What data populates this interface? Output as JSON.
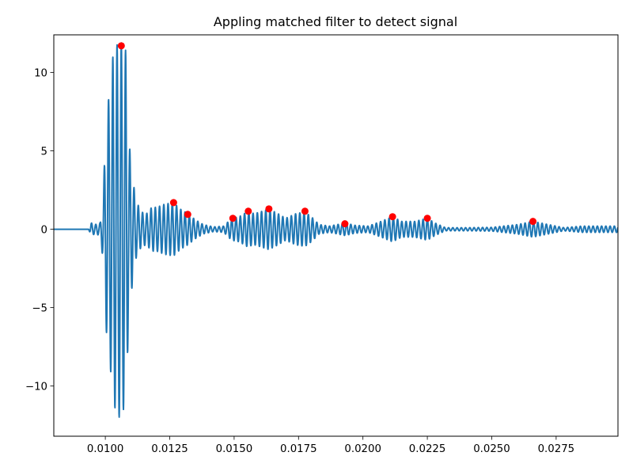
{
  "chart_data": {
    "type": "line",
    "title": "Appling matched filter to detect signal",
    "xlabel": "",
    "ylabel": "",
    "xlim": [
      0.008,
      0.0299
    ],
    "ylim": [
      -13.2,
      12.4
    ],
    "grid": false,
    "x_ticks": [
      0.01,
      0.0125,
      0.015,
      0.0175,
      0.02,
      0.0225,
      0.025,
      0.0275
    ],
    "x_tick_labels": [
      "0.0100",
      "0.0125",
      "0.0150",
      "0.0175",
      "0.0200",
      "0.0225",
      "0.0250",
      "0.0275"
    ],
    "y_ticks": [
      -10,
      -5,
      0,
      5,
      10
    ],
    "y_tick_labels": [
      "−10",
      "−5",
      "0",
      "5",
      "10"
    ],
    "series": [
      {
        "type": "line",
        "color": "#1f77b4",
        "carrier_period": 0.000165,
        "x_start": 0.008,
        "x_end": 0.0299,
        "envelope": [
          [
            0.008,
            0
          ],
          [
            0.00935,
            0
          ],
          [
            0.00945,
            0.4
          ],
          [
            0.0096,
            0.3
          ],
          [
            0.0098,
            0.4
          ],
          [
            0.0099,
            1.8
          ],
          [
            0.01,
            5.4
          ],
          [
            0.0101,
            8.1
          ],
          [
            0.0102,
            8.9
          ],
          [
            0.0103,
            11.2
          ],
          [
            0.0104,
            11.5
          ],
          [
            0.0105,
            12.0
          ],
          [
            0.0106,
            12.0
          ],
          [
            0.0107,
            11.5
          ],
          [
            0.0108,
            11.4
          ],
          [
            0.0109,
            6.0
          ],
          [
            0.011,
            4.2
          ],
          [
            0.0111,
            2.8
          ],
          [
            0.0112,
            1.8
          ],
          [
            0.0114,
            1.1
          ],
          [
            0.0116,
            1.0
          ],
          [
            0.0118,
            1.4
          ],
          [
            0.012,
            1.4
          ],
          [
            0.0123,
            1.6
          ],
          [
            0.01265,
            1.7
          ],
          [
            0.0129,
            1.3
          ],
          [
            0.0132,
            1.0
          ],
          [
            0.0135,
            0.6
          ],
          [
            0.0138,
            0.3
          ],
          [
            0.0142,
            0.15
          ],
          [
            0.0146,
            0.2
          ],
          [
            0.0149,
            0.7
          ],
          [
            0.0152,
            0.8
          ],
          [
            0.0155,
            1.1
          ],
          [
            0.0158,
            1.0
          ],
          [
            0.01635,
            1.3
          ],
          [
            0.0167,
            1.0
          ],
          [
            0.017,
            0.7
          ],
          [
            0.0174,
            1.0
          ],
          [
            0.01775,
            1.1
          ],
          [
            0.018,
            0.8
          ],
          [
            0.0183,
            0.3
          ],
          [
            0.0187,
            0.2
          ],
          [
            0.0193,
            0.4
          ],
          [
            0.0197,
            0.25
          ],
          [
            0.0202,
            0.2
          ],
          [
            0.0207,
            0.5
          ],
          [
            0.02115,
            0.8
          ],
          [
            0.0215,
            0.5
          ],
          [
            0.022,
            0.5
          ],
          [
            0.0225,
            0.7
          ],
          [
            0.0228,
            0.4
          ],
          [
            0.0232,
            0.1
          ],
          [
            0.024,
            0.1
          ],
          [
            0.025,
            0.12
          ],
          [
            0.026,
            0.3
          ],
          [
            0.0266,
            0.5
          ],
          [
            0.0272,
            0.3
          ],
          [
            0.0278,
            0.1
          ],
          [
            0.0285,
            0.2
          ],
          [
            0.029,
            0.2
          ],
          [
            0.0299,
            0.2
          ]
        ]
      },
      {
        "type": "scatter",
        "color": "#ff0000",
        "points": [
          [
            0.01062,
            11.7
          ],
          [
            0.01265,
            1.7
          ],
          [
            0.0132,
            0.95
          ],
          [
            0.01495,
            0.7
          ],
          [
            0.01555,
            1.15
          ],
          [
            0.01635,
            1.3
          ],
          [
            0.01775,
            1.15
          ],
          [
            0.0193,
            0.35
          ],
          [
            0.02115,
            0.8
          ],
          [
            0.0225,
            0.7
          ],
          [
            0.0266,
            0.5
          ]
        ]
      }
    ]
  }
}
